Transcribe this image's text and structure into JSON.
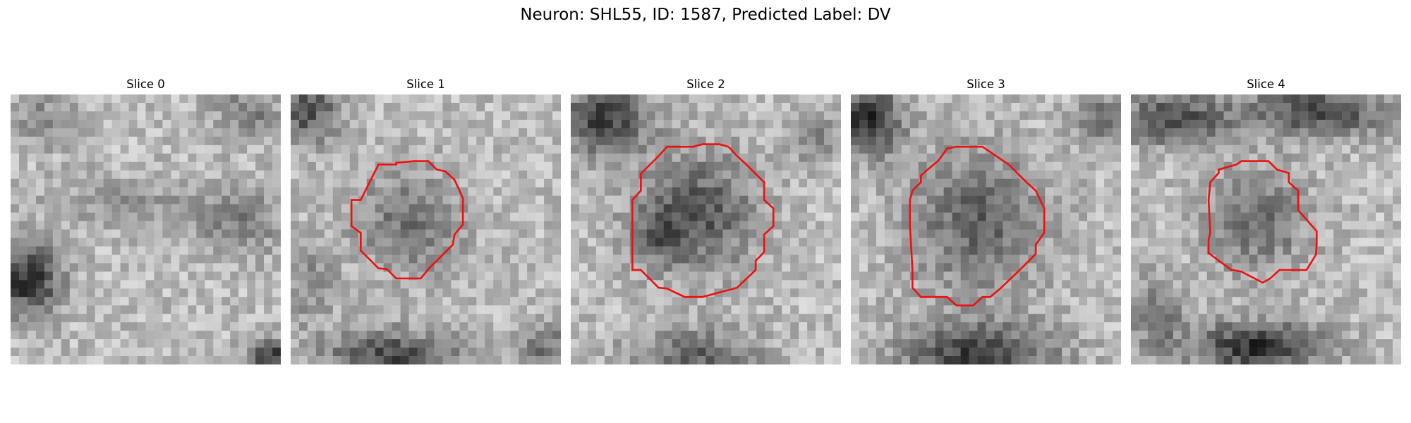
{
  "figure": {
    "title": "Neuron: SHL55, ID: 1587, Predicted Label: DV"
  },
  "panels": [
    {
      "title": "Slice 0",
      "has_outline": false
    },
    {
      "title": "Slice 1",
      "has_outline": true
    },
    {
      "title": "Slice 2",
      "has_outline": true
    },
    {
      "title": "Slice 3",
      "has_outline": true
    },
    {
      "title": "Slice 4",
      "has_outline": true
    }
  ],
  "colors": {
    "outline": "#ee1111",
    "background": "#ffffff"
  },
  "image": {
    "colormap": "grayscale",
    "grid": "pixelated grayscale micrograph patch"
  }
}
